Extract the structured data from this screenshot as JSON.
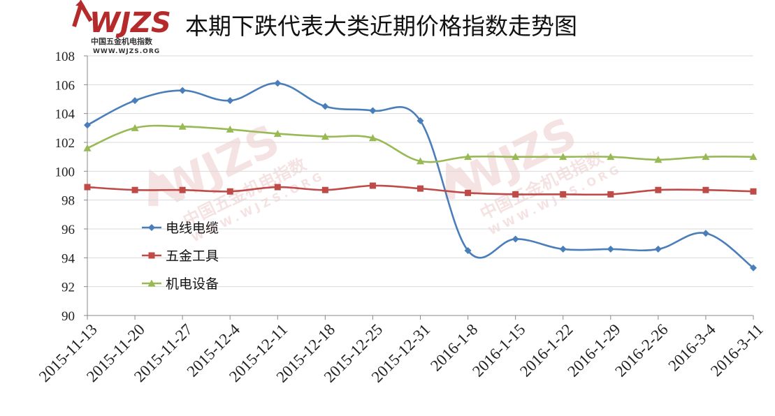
{
  "logo": {
    "mark": "WJZS",
    "name": "中国五金机电指数",
    "url": "WWW.WJZS.ORG",
    "color": "#b52a2a"
  },
  "watermark": {
    "mark": "WJZS",
    "name": "中国五金机电指数",
    "url": "WWW.WJZS.ORG"
  },
  "chart_data": {
    "type": "line",
    "title": "本期下跌代表大类近期价格指数走势图",
    "categories": [
      "2015-11-13",
      "2015-11-20",
      "2015-11-27",
      "2015-12-4",
      "2015-12-11",
      "2015-12-18",
      "2015-12-25",
      "2015-12-31",
      "2016-1-8",
      "2016-1-15",
      "2016-1-22",
      "2016-1-29",
      "2016-2-26",
      "2016-3-4",
      "2016-3-11"
    ],
    "ylim": [
      90,
      108
    ],
    "yticks": [
      "90",
      "92",
      "94",
      "96",
      "98",
      "100",
      "102",
      "104",
      "106",
      "108"
    ],
    "grid": true,
    "legend_position": "left-middle",
    "series": [
      {
        "name": "电线电缆",
        "color": "#4a7ebb",
        "marker": "diamond",
        "values": [
          103.2,
          104.9,
          105.6,
          104.9,
          106.1,
          104.5,
          104.2,
          103.5,
          94.5,
          95.3,
          94.6,
          94.6,
          94.6,
          95.7,
          93.3
        ]
      },
      {
        "name": "五金工具",
        "color": "#be4b48",
        "marker": "square",
        "values": [
          98.9,
          98.7,
          98.7,
          98.6,
          98.9,
          98.7,
          99.0,
          98.8,
          98.5,
          98.4,
          98.4,
          98.4,
          98.7,
          98.7,
          98.6
        ]
      },
      {
        "name": "机电设备",
        "color": "#98b954",
        "marker": "triangle",
        "values": [
          101.6,
          103.0,
          103.1,
          102.9,
          102.6,
          102.4,
          102.3,
          100.7,
          101.0,
          101.0,
          101.0,
          101.0,
          100.8,
          101.0,
          101.0
        ]
      }
    ]
  }
}
